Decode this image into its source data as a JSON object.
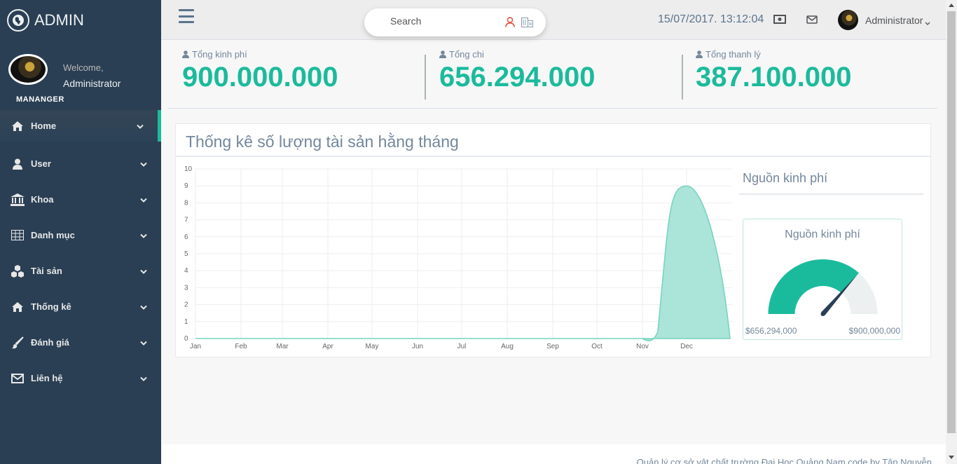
{
  "brand": {
    "title": "ADMIN",
    "icon": "globe-icon"
  },
  "profile": {
    "welcome": "Welcome,",
    "name": "Administrator",
    "role": "MANANGER"
  },
  "menu": [
    {
      "label": "Home",
      "icon": "home-icon"
    },
    {
      "label": "User",
      "icon": "user-icon"
    },
    {
      "label": "Khoa",
      "icon": "institution-icon"
    },
    {
      "label": "Danh mục",
      "icon": "table-icon"
    },
    {
      "label": "Tài sản",
      "icon": "cubes-icon"
    },
    {
      "label": "Thống kê",
      "icon": "home-icon"
    },
    {
      "label": "Đánh giá",
      "icon": "paint-brush-icon"
    },
    {
      "label": "Liên hệ",
      "icon": "envelope-icon"
    }
  ],
  "topbar": {
    "search_placeholder": "Search",
    "datetime": "15/07/2017. 13:12:04",
    "user_name": "Administrator"
  },
  "stats": [
    {
      "label": "Tổng kinh phí",
      "value": "900.000.000"
    },
    {
      "label": "Tổng chi",
      "value": "656.294.000"
    },
    {
      "label": "Tổng thanh lý",
      "value": "387.100.000"
    }
  ],
  "panel": {
    "title": "Thống kê số lượng tài sản hằng tháng"
  },
  "chart_data": {
    "type": "area",
    "categories": [
      "Jan",
      "Feb",
      "Mar",
      "Apr",
      "May",
      "Jun",
      "Jul",
      "Aug",
      "Sep",
      "Oct",
      "Nov",
      "Dec"
    ],
    "y_ticks": [
      "0",
      "1",
      "2",
      "3",
      "4",
      "5",
      "6",
      "7",
      "8",
      "9",
      "10"
    ],
    "series": [
      {
        "values": [
          0,
          0,
          0,
          0,
          0,
          0,
          0,
          0,
          0,
          0,
          0,
          9
        ]
      }
    ],
    "ylim": [
      0,
      10
    ],
    "grid": true,
    "colors": {
      "fill": "#A6E3D6",
      "stroke": "#73D3BE"
    }
  },
  "funding": {
    "section_title": "Nguồn kinh phí",
    "gauge_title": "Nguồn kinh phí",
    "spent": 656294000,
    "total": 900000000,
    "min_label": "$656,294,000",
    "max_label": "$900,000,000",
    "colors": {
      "fill": "#1ABB9C",
      "track": "#ECF0F1",
      "needle": "#2A3F54"
    }
  },
  "footer": {
    "text": "Quản lý cơ sở vật chất trường Đại Học Quảng Nam code by Tân Nguyễn"
  }
}
